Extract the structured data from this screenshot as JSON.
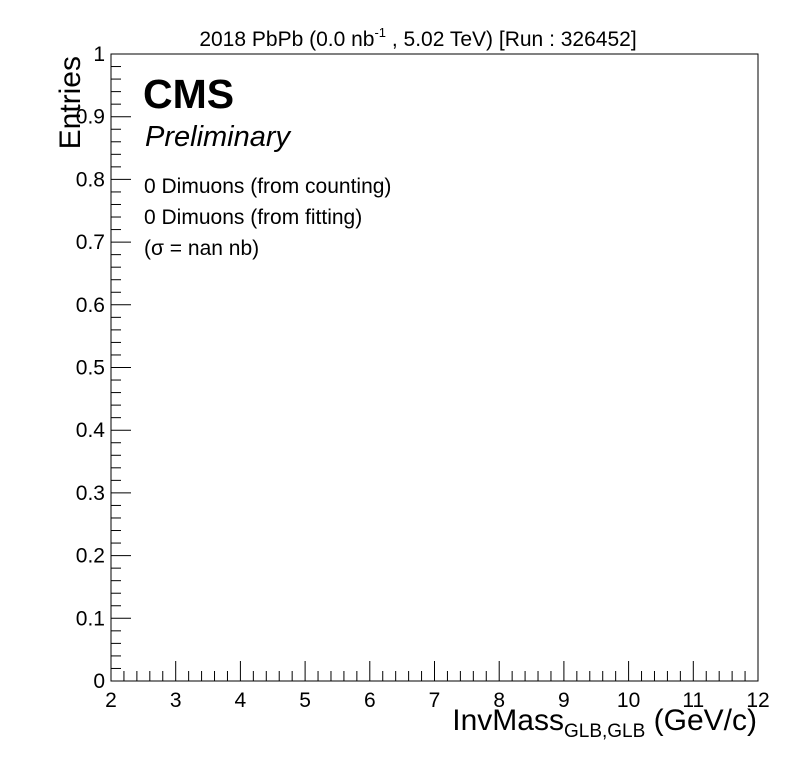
{
  "chart_data": {
    "type": "line",
    "title_parts": {
      "pre": "2018 PbPb (0.0 nb",
      "sup": "-1",
      "post": " , 5.02 TeV) [Run : 326452]"
    },
    "xlabel_parts": {
      "main": "InvMass",
      "sub": "GLB,GLB",
      "post": " (GeV/c)"
    },
    "ylabel": "Entries",
    "xlim": [
      2,
      12
    ],
    "ylim": [
      0,
      1
    ],
    "x_ticks": [
      2,
      3,
      4,
      5,
      6,
      7,
      8,
      9,
      10,
      11,
      12
    ],
    "y_ticks": [
      0,
      0.1,
      0.2,
      0.3,
      0.4,
      0.5,
      0.6,
      0.7,
      0.8,
      0.9,
      1
    ],
    "y_tick_labels": [
      "0",
      "0.1",
      "0.2",
      "0.3",
      "0.4",
      "0.5",
      "0.6",
      "0.7",
      "0.8",
      "0.9",
      "1"
    ],
    "x_minor_per_major": 5,
    "y_minor_per_major": 5,
    "grid": false,
    "series": [],
    "annotations": {
      "experiment": "CMS",
      "status": "Preliminary",
      "lines": [
        "0 Dimuons (from counting)",
        "0 Dimuons (from fitting)",
        "(σ = nan nb)"
      ]
    }
  }
}
